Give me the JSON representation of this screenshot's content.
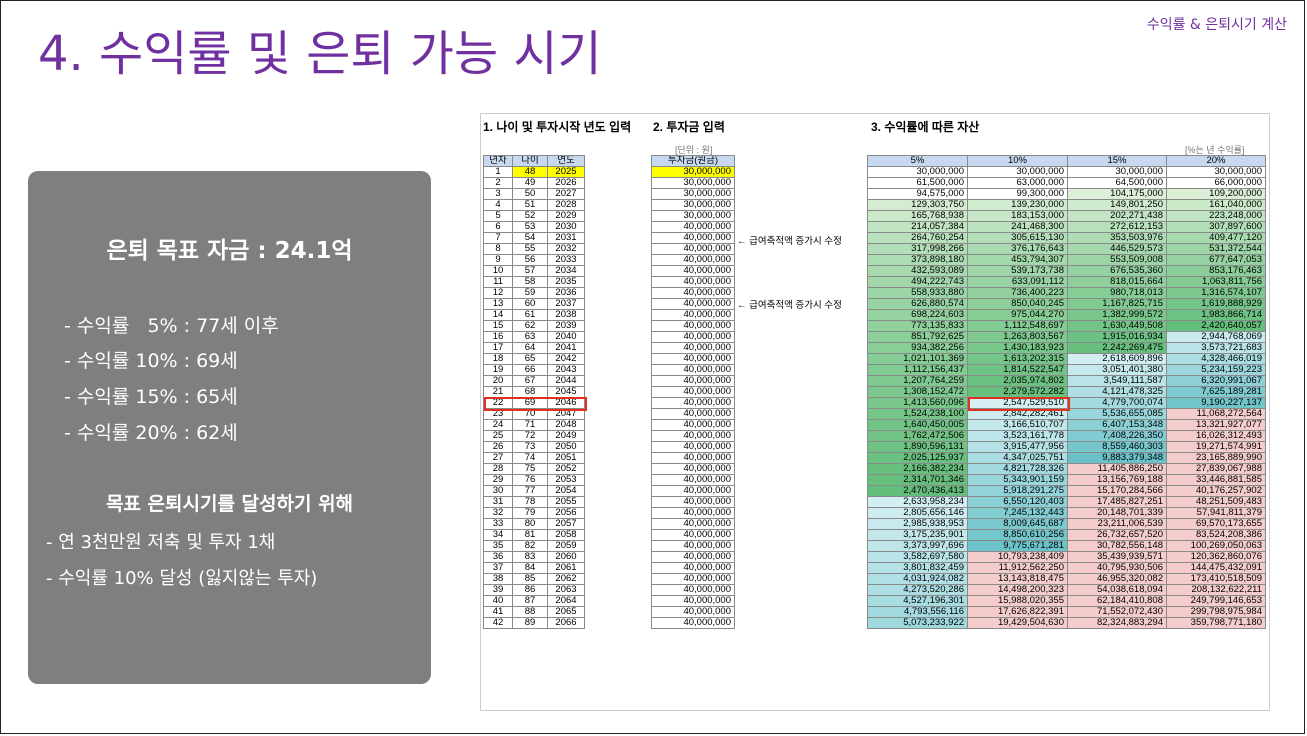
{
  "header": {
    "title": "4. 수익률 및 은퇴 가능 시기",
    "top_right": "수익률 & 은퇴시기 계산"
  },
  "summary": {
    "goal": "은퇴 목표 자금 : 24.1억",
    "rates": [
      "- 수익률   5% : 77세 이후",
      "- 수익률 10% : 69세",
      "- 수익률 15% : 65세",
      "- 수익률 20% : 62세"
    ],
    "subtitle": "목표 은퇴시기를 달성하기 위해",
    "actions": [
      "- 연 3천만원 저축 및 투자 1채",
      "- 수익률 10% 달성 (잃지않는 투자)"
    ]
  },
  "sheet": {
    "section1": "1. 나이 및 투자시작 년도 입력",
    "section2": "2. 투자금 입력",
    "section3": "3. 수익률에 따른 자산",
    "unit_invest": "[단위 : 원]",
    "unit_rates": "[%는 년 수익률]",
    "memo": "← 급여축적액 증가시 수정",
    "headers_age": [
      "년차",
      "나이",
      "연도"
    ],
    "header_invest": "투자금(원금)",
    "headers_rates": [
      "5%",
      "10%",
      "15%",
      "20%"
    ],
    "highlight_color": "#e03020",
    "input_color": "#ffff00",
    "rows": [
      [
        "1",
        "48",
        "2025",
        "30,000,000",
        "30,000,000",
        "30,000,000",
        "30,000,000",
        "30,000,000"
      ],
      [
        "2",
        "49",
        "2026",
        "30,000,000",
        "61,500,000",
        "63,000,000",
        "64,500,000",
        "66,000,000"
      ],
      [
        "3",
        "50",
        "2027",
        "30,000,000",
        "94,575,000",
        "99,300,000",
        "104,175,000",
        "109,200,000"
      ],
      [
        "4",
        "51",
        "2028",
        "30,000,000",
        "129,303,750",
        "139,230,000",
        "149,801,250",
        "161,040,000"
      ],
      [
        "5",
        "52",
        "2029",
        "30,000,000",
        "165,768,938",
        "183,153,000",
        "202,271,438",
        "223,248,000"
      ],
      [
        "6",
        "53",
        "2030",
        "40,000,000",
        "214,057,384",
        "241,468,300",
        "272,612,153",
        "307,897,600"
      ],
      [
        "7",
        "54",
        "2031",
        "40,000,000",
        "264,760,254",
        "305,615,130",
        "353,503,976",
        "409,477,120"
      ],
      [
        "8",
        "55",
        "2032",
        "40,000,000",
        "317,998,266",
        "376,176,643",
        "446,529,573",
        "531,372,544"
      ],
      [
        "9",
        "56",
        "2033",
        "40,000,000",
        "373,898,180",
        "453,794,307",
        "553,509,008",
        "677,647,053"
      ],
      [
        "10",
        "57",
        "2034",
        "40,000,000",
        "432,593,089",
        "539,173,738",
        "676,535,360",
        "853,176,463"
      ],
      [
        "11",
        "58",
        "2035",
        "40,000,000",
        "494,222,743",
        "633,091,112",
        "818,015,664",
        "1,063,811,756"
      ],
      [
        "12",
        "59",
        "2036",
        "40,000,000",
        "558,933,880",
        "736,400,223",
        "980,718,013",
        "1,316,574,107"
      ],
      [
        "13",
        "60",
        "2037",
        "40,000,000",
        "626,880,574",
        "850,040,245",
        "1,167,825,715",
        "1,619,888,929"
      ],
      [
        "14",
        "61",
        "2038",
        "40,000,000",
        "698,224,603",
        "975,044,270",
        "1,382,999,572",
        "1,983,866,714"
      ],
      [
        "15",
        "62",
        "2039",
        "40,000,000",
        "773,135,833",
        "1,112,548,697",
        "1,630,449,508",
        "2,420,640,057"
      ],
      [
        "16",
        "63",
        "2040",
        "40,000,000",
        "851,792,625",
        "1,263,803,567",
        "1,915,016,934",
        "2,944,768,069"
      ],
      [
        "17",
        "64",
        "2041",
        "40,000,000",
        "934,382,256",
        "1,430,183,923",
        "2,242,269,475",
        "3,573,721,683"
      ],
      [
        "18",
        "65",
        "2042",
        "40,000,000",
        "1,021,101,369",
        "1,613,202,315",
        "2,618,609,896",
        "4,328,466,019"
      ],
      [
        "19",
        "66",
        "2043",
        "40,000,000",
        "1,112,156,437",
        "1,814,522,547",
        "3,051,401,380",
        "5,234,159,223"
      ],
      [
        "20",
        "67",
        "2044",
        "40,000,000",
        "1,207,764,259",
        "2,035,974,802",
        "3,549,111,587",
        "6,320,991,067"
      ],
      [
        "21",
        "68",
        "2045",
        "40,000,000",
        "1,308,152,472",
        "2,279,572,282",
        "4,121,478,325",
        "7,625,189,281"
      ],
      [
        "22",
        "69",
        "2046",
        "40,000,000",
        "1,413,560,096",
        "2,547,529,510",
        "4,779,700,074",
        "9,190,227,137"
      ],
      [
        "23",
        "70",
        "2047",
        "40,000,000",
        "1,524,238,100",
        "2,842,282,461",
        "5,536,655,085",
        "11,068,272,564"
      ],
      [
        "24",
        "71",
        "2048",
        "40,000,000",
        "1,640,450,005",
        "3,166,510,707",
        "6,407,153,348",
        "13,321,927,077"
      ],
      [
        "25",
        "72",
        "2049",
        "40,000,000",
        "1,762,472,506",
        "3,523,161,778",
        "7,408,226,350",
        "16,026,312,493"
      ],
      [
        "26",
        "73",
        "2050",
        "40,000,000",
        "1,890,596,131",
        "3,915,477,956",
        "8,559,460,303",
        "19,271,574,991"
      ],
      [
        "27",
        "74",
        "2051",
        "40,000,000",
        "2,025,125,937",
        "4,347,025,751",
        "9,883,379,348",
        "23,165,889,990"
      ],
      [
        "28",
        "75",
        "2052",
        "40,000,000",
        "2,166,382,234",
        "4,821,728,326",
        "11,405,886,250",
        "27,839,067,988"
      ],
      [
        "29",
        "76",
        "2053",
        "40,000,000",
        "2,314,701,346",
        "5,343,901,159",
        "13,156,769,188",
        "33,446,881,585"
      ],
      [
        "30",
        "77",
        "2054",
        "40,000,000",
        "2,470,436,413",
        "5,918,291,275",
        "15,170,284,566",
        "40,176,257,902"
      ],
      [
        "31",
        "78",
        "2055",
        "40,000,000",
        "2,633,958,234",
        "6,550,120,403",
        "17,485,827,251",
        "48,251,509,483"
      ],
      [
        "32",
        "79",
        "2056",
        "40,000,000",
        "2,805,656,146",
        "7,245,132,443",
        "20,148,701,339",
        "57,941,811,379"
      ],
      [
        "33",
        "80",
        "2057",
        "40,000,000",
        "2,985,938,953",
        "8,009,645,687",
        "23,211,006,539",
        "69,570,173,655"
      ],
      [
        "34",
        "81",
        "2058",
        "40,000,000",
        "3,175,235,901",
        "8,850,610,256",
        "26,732,657,520",
        "83,524,208,386"
      ],
      [
        "35",
        "82",
        "2059",
        "40,000,000",
        "3,373,997,696",
        "9,775,671,281",
        "30,782,556,148",
        "100,269,050,063"
      ],
      [
        "36",
        "83",
        "2060",
        "40,000,000",
        "3,582,697,580",
        "10,793,238,409",
        "35,439,939,571",
        "120,362,860,076"
      ],
      [
        "37",
        "84",
        "2061",
        "40,000,000",
        "3,801,832,459",
        "11,912,562,250",
        "40,795,930,506",
        "144,475,432,091"
      ],
      [
        "38",
        "85",
        "2062",
        "40,000,000",
        "4,031,924,082",
        "13,143,818,475",
        "46,955,320,082",
        "173,410,518,509"
      ],
      [
        "39",
        "86",
        "2063",
        "40,000,000",
        "4,273,520,286",
        "14,498,200,323",
        "54,038,618,094",
        "208,132,622,211"
      ],
      [
        "40",
        "87",
        "2064",
        "40,000,000",
        "4,527,196,301",
        "15,988,020,355",
        "62,184,410,808",
        "249,799,146,653"
      ],
      [
        "41",
        "88",
        "2065",
        "40,000,000",
        "4,793,556,116",
        "17,626,822,391",
        "71,552,072,430",
        "299,798,975,984"
      ],
      [
        "42",
        "89",
        "2066",
        "40,000,000",
        "5,073,233,922",
        "19,429,504,630",
        "82,324,883,294",
        "359,798,771,180"
      ]
    ]
  }
}
